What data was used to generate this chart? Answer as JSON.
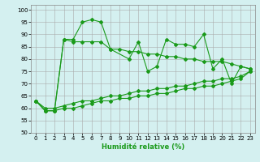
{
  "x": [
    0,
    1,
    2,
    3,
    4,
    5,
    6,
    7,
    8,
    9,
    10,
    11,
    12,
    13,
    14,
    15,
    16,
    17,
    18,
    19,
    20,
    21,
    22,
    23
  ],
  "line1": [
    63,
    59,
    59,
    88,
    88,
    95,
    96,
    95,
    84,
    null,
    80,
    87,
    75,
    77,
    88,
    86,
    86,
    85,
    90,
    76,
    80,
    70,
    77,
    76
  ],
  "line2": [
    63,
    59,
    59,
    88,
    87,
    87,
    87,
    87,
    84,
    84,
    83,
    83,
    82,
    82,
    81,
    81,
    80,
    80,
    79,
    79,
    79,
    78,
    77,
    76
  ],
  "line3": [
    63,
    60,
    60,
    61,
    62,
    63,
    63,
    64,
    65,
    65,
    66,
    67,
    67,
    68,
    68,
    69,
    69,
    70,
    71,
    71,
    72,
    72,
    73,
    75
  ],
  "line4": [
    63,
    59,
    59,
    60,
    60,
    61,
    62,
    63,
    63,
    64,
    64,
    65,
    65,
    66,
    66,
    67,
    68,
    68,
    69,
    69,
    70,
    71,
    72,
    75
  ],
  "line_color": "#1a9a1a",
  "bg_color": "#d4f0f0",
  "grid_color": "#aaaaaa",
  "xlabel": "Humidité relative (%)",
  "xlim": [
    -0.5,
    23.5
  ],
  "ylim": [
    50,
    102
  ],
  "yticks": [
    50,
    55,
    60,
    65,
    70,
    75,
    80,
    85,
    90,
    95,
    100
  ],
  "xticks": [
    0,
    1,
    2,
    3,
    4,
    5,
    6,
    7,
    8,
    9,
    10,
    11,
    12,
    13,
    14,
    15,
    16,
    17,
    18,
    19,
    20,
    21,
    22,
    23
  ]
}
